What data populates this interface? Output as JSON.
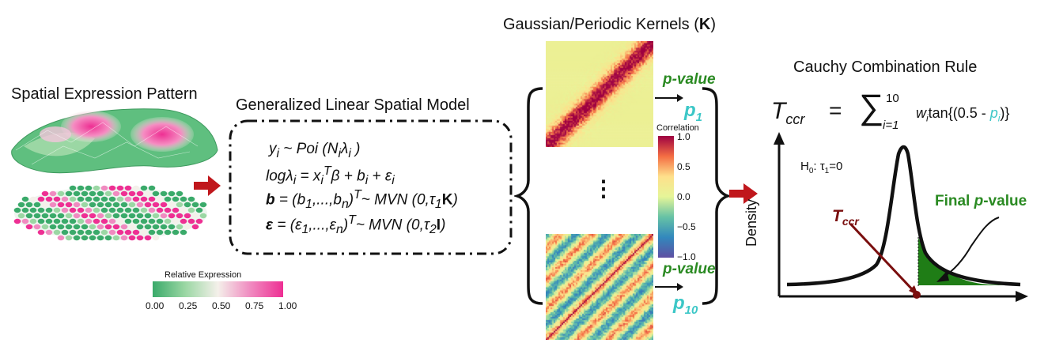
{
  "titles": {
    "spatial": "Spatial Expression Pattern",
    "glsm": "Generalized Linear Spatial Model",
    "kernels": "Gaussian/Periodic Kernels (",
    "kernels_bold": "K",
    "kernels_close": ")",
    "cauchy": "Cauchy Combination Rule"
  },
  "legend_expression": {
    "title": "Relative Expression",
    "ticks": [
      "0.00",
      "0.25",
      "0.50",
      "0.75",
      "1.00"
    ],
    "colors": [
      "#3aaa6a",
      "#9bd7a4",
      "#f4f0ea",
      "#f08ac0",
      "#ee2f93"
    ]
  },
  "legend_correlation": {
    "title": "Correlation",
    "ticks": [
      "1.0",
      "0.5",
      "0.0",
      "−0.5",
      "−1.0"
    ],
    "colors": [
      "#9e0142",
      "#f46d43",
      "#fee08b",
      "#e6f598",
      "#66c2a5",
      "#3288bd",
      "#5e4fa2"
    ]
  },
  "model": {
    "line1": "y_i ~ Poi (N_iλ_i )",
    "line2": "logλ_i = x_i^Tβ + b_i + ε_i",
    "line3": "b = (b_1,...,b_n)^T~ MVN (0,τ_1K)",
    "line4": "ε = (ε_1,...,ε_n)^T~ MVN (0,τ_2I)"
  },
  "pvalue_label": "p-value",
  "p_first": "p1",
  "p_last": "p10",
  "ellipsis": "⋮",
  "cauchy_formula": {
    "lhs": "T_ccr",
    "equals": "=",
    "sum_upper": "10",
    "sum_lower": "i=1",
    "summand": "w_i tan{(0.5 - p_i)}"
  },
  "hypothesis": "H0: τ1=0",
  "density_label": "Density",
  "final_pvalue": "Final p-value",
  "tccr_label": "T_ccr",
  "colors": {
    "arrow_red": "#c0171c",
    "green": "#2a8a22",
    "cyan": "#3cc7c7",
    "dark_red": "#7a0e0e"
  }
}
